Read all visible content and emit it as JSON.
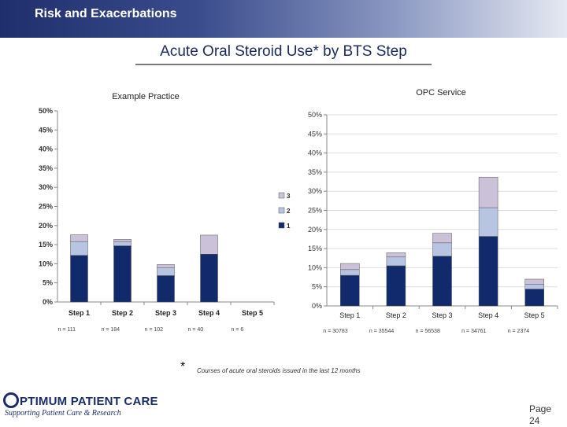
{
  "header": {
    "title": "Risk and Exacerbations"
  },
  "slide_title": "Acute Oral Steroid Use* by BTS Step",
  "footnote": {
    "star": "*",
    "text": "Courses of acute oral steroids issued in the last 12 months"
  },
  "logo": {
    "main": "PTIMUM PATIENT CARE",
    "tagline": "Supporting Patient Care & Research"
  },
  "page": {
    "label": "Page",
    "number": "24"
  },
  "colors": {
    "s1": "#102a6b",
    "s2": "#b8c5e2",
    "s3": "#cbc1d8",
    "header": "#1f2f6d"
  },
  "chart_data": [
    {
      "type": "bar",
      "stacked": true,
      "title": "Example Practice",
      "categories": [
        "Step 1",
        "Step 2",
        "Step 3",
        "Step 4",
        "Step 5"
      ],
      "n_labels": [
        "n = 111",
        "n = 184",
        "n = 102",
        "n = 40",
        "n = 6"
      ],
      "series": [
        {
          "name": "1",
          "values": [
            12.2,
            14.7,
            6.9,
            12.5,
            0
          ]
        },
        {
          "name": "2",
          "values": [
            3.6,
            1.1,
            2.0,
            0,
            0
          ]
        },
        {
          "name": "3",
          "values": [
            1.8,
            0.6,
            0.9,
            5.0,
            0
          ]
        }
      ],
      "ylim": [
        0,
        50
      ],
      "yticks": [
        "0%",
        "5%",
        "10%",
        "15%",
        "20%",
        "25%",
        "30%",
        "35%",
        "40%",
        "45%",
        "50%"
      ],
      "legend": "right"
    },
    {
      "type": "bar",
      "stacked": true,
      "title": "OPC Service",
      "categories": [
        "Step 1",
        "Step 2",
        "Step 3",
        "Step 4",
        "Step 5"
      ],
      "n_labels": [
        "n = 30783",
        "n = 35544",
        "n = 56538",
        "n = 34761",
        "n = 2374"
      ],
      "series": [
        {
          "name": "1",
          "values": [
            8.0,
            10.5,
            13.0,
            18.2,
            4.4
          ]
        },
        {
          "name": "2",
          "values": [
            1.5,
            2.3,
            3.5,
            7.5,
            1.3
          ]
        },
        {
          "name": "3",
          "values": [
            1.6,
            1.1,
            2.5,
            8.0,
            1.3
          ]
        }
      ],
      "ylim": [
        0,
        50
      ],
      "yticks": [
        "0%",
        "5%",
        "10%",
        "15%",
        "20%",
        "25%",
        "30%",
        "35%",
        "40%",
        "45%",
        "50%"
      ]
    }
  ]
}
